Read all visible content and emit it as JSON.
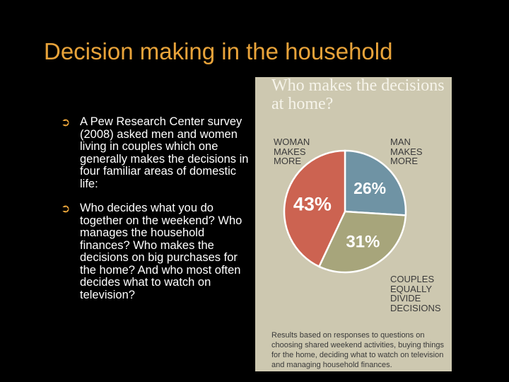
{
  "slide": {
    "title": "Decision making in the household",
    "bullets": [
      {
        "text": "A Pew Research Center survey (2008) asked men and women living in couples which one generally makes the decisions in four familiar areas of domestic life:"
      },
      {
        "text": "Who decides what you do together on the weekend? Who manages the household finances? Who makes the decisions on big purchases for the home? And who most often decides what to watch on television?"
      }
    ],
    "bullet_glyph": "➲",
    "title_color": "#e8a33a"
  },
  "chart_data": {
    "type": "pie",
    "title": "Who makes the decisions at home?",
    "slices": [
      {
        "label": "MAN MAKES MORE",
        "value": 26,
        "value_label": "26%",
        "color": "#6f93a4"
      },
      {
        "label": "COUPLES EQUALLY DIVIDE DECISIONS",
        "value": 31,
        "value_label": "31%",
        "color": "#a7a57b"
      },
      {
        "label": "WOMAN MAKES MORE",
        "value": 43,
        "value_label": "43%",
        "color": "#cc6351"
      }
    ],
    "footnote": "Results based on responses to questions on choosing shared weekend activities, buying things for the home, deciding what to watch on television and managing household finances."
  }
}
